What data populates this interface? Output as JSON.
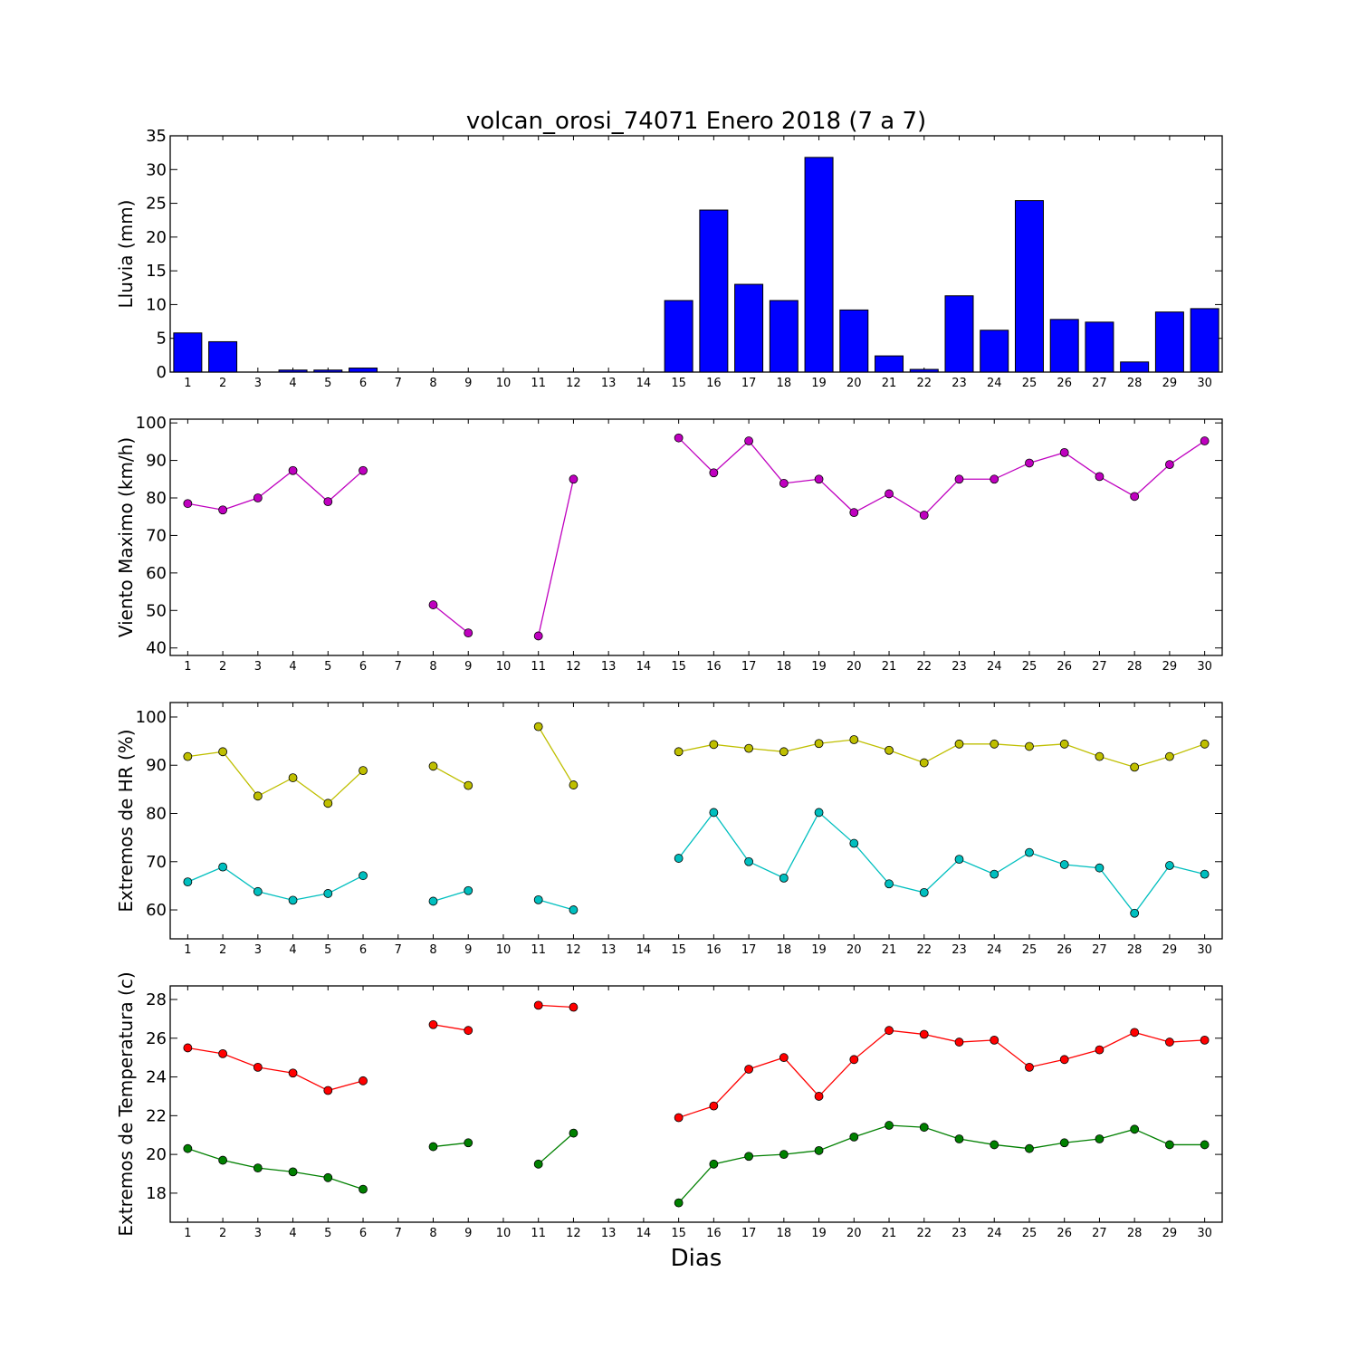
{
  "chart_data": [
    {
      "type": "bar",
      "title": "volcan_orosi_74071 Enero 2018  (7 a 7)",
      "ylabel": "Lluvia (mm)",
      "xlabel": "",
      "ylim": [
        0,
        35
      ],
      "yticks": [
        0,
        5,
        10,
        15,
        20,
        25,
        30,
        35
      ],
      "x": [
        1,
        2,
        3,
        4,
        5,
        6,
        7,
        8,
        9,
        10,
        11,
        12,
        13,
        14,
        15,
        16,
        17,
        18,
        19,
        20,
        21,
        22,
        23,
        24,
        25,
        26,
        27,
        28,
        29,
        30
      ],
      "values": [
        5.8,
        4.5,
        0,
        0.3,
        0.3,
        0.6,
        0,
        0,
        0,
        0,
        0,
        0,
        0,
        0,
        10.6,
        24,
        13,
        10.6,
        31.8,
        9.2,
        2.4,
        0.4,
        11.3,
        6.2,
        25.4,
        7.8,
        7.4,
        1.5,
        8.9,
        9.4
      ],
      "series": [
        {
          "color": "#0000ff",
          "values": [
            5.8,
            4.5,
            0,
            0.3,
            0.3,
            0.6,
            0,
            0,
            0,
            0,
            0,
            0,
            0,
            0,
            10.6,
            24,
            13,
            10.6,
            31.8,
            9.2,
            2.4,
            0.4,
            11.3,
            6.2,
            25.4,
            7.8,
            7.4,
            1.5,
            8.9,
            9.4
          ]
        }
      ]
    },
    {
      "type": "line",
      "title": "",
      "ylabel": "Viento Maximo (km/h)",
      "xlabel": "",
      "ylim": [
        38,
        101
      ],
      "yticks": [
        40,
        50,
        60,
        70,
        80,
        90,
        100
      ],
      "x": [
        1,
        2,
        3,
        4,
        5,
        6,
        7,
        8,
        9,
        10,
        11,
        12,
        13,
        14,
        15,
        16,
        17,
        18,
        19,
        20,
        21,
        22,
        23,
        24,
        25,
        26,
        27,
        28,
        29,
        30
      ],
      "series": [
        {
          "color": "#bf00bf",
          "values": [
            78.5,
            76.8,
            80,
            87.3,
            79,
            87.3,
            null,
            51.5,
            44,
            null,
            43.2,
            85,
            null,
            null,
            96,
            86.7,
            95.2,
            83.9,
            85,
            76.1,
            81.1,
            75.4,
            85,
            85,
            89.3,
            92.1,
            85.7,
            80.4,
            88.9,
            95.2
          ]
        }
      ]
    },
    {
      "type": "line",
      "title": "",
      "ylabel": "Extremos de HR (%)",
      "xlabel": "",
      "ylim": [
        54,
        103
      ],
      "yticks": [
        60,
        70,
        80,
        90,
        100
      ],
      "x": [
        1,
        2,
        3,
        4,
        5,
        6,
        7,
        8,
        9,
        10,
        11,
        12,
        13,
        14,
        15,
        16,
        17,
        18,
        19,
        20,
        21,
        22,
        23,
        24,
        25,
        26,
        27,
        28,
        29,
        30
      ],
      "series": [
        {
          "color": "#bfbf00",
          "values": [
            91.8,
            92.8,
            83.6,
            87.4,
            82.1,
            88.9,
            null,
            89.8,
            85.8,
            null,
            98,
            85.9,
            null,
            null,
            92.8,
            94.3,
            93.5,
            92.8,
            94.5,
            95.3,
            93.1,
            90.5,
            94.4,
            94.4,
            93.9,
            94.4,
            91.8,
            89.6,
            91.8,
            94.4
          ]
        },
        {
          "color": "#00bfbf",
          "values": [
            65.8,
            68.9,
            63.8,
            62,
            63.4,
            67.1,
            null,
            61.8,
            64,
            null,
            62.1,
            60,
            null,
            null,
            70.7,
            80.2,
            70,
            66.6,
            80.2,
            73.8,
            65.4,
            63.6,
            70.5,
            67.4,
            71.9,
            69.4,
            68.7,
            59.3,
            69.2,
            67.4
          ]
        }
      ]
    },
    {
      "type": "line",
      "title": "",
      "ylabel": "Extremos de Temperatura (c)",
      "xlabel": "Dias",
      "ylim": [
        16.5,
        28.7
      ],
      "yticks": [
        18,
        20,
        22,
        24,
        26,
        28
      ],
      "x": [
        1,
        2,
        3,
        4,
        5,
        6,
        7,
        8,
        9,
        10,
        11,
        12,
        13,
        14,
        15,
        16,
        17,
        18,
        19,
        20,
        21,
        22,
        23,
        24,
        25,
        26,
        27,
        28,
        29,
        30
      ],
      "series": [
        {
          "color": "#ff0000",
          "values": [
            25.5,
            25.2,
            24.5,
            24.2,
            23.3,
            23.8,
            null,
            26.7,
            26.4,
            null,
            27.7,
            27.6,
            null,
            null,
            21.9,
            22.5,
            24.4,
            25,
            23,
            24.9,
            26.4,
            26.2,
            25.8,
            25.9,
            24.5,
            24.9,
            25.4,
            26.3,
            25.8,
            25.9
          ]
        },
        {
          "color": "#008000",
          "values": [
            20.3,
            19.7,
            19.3,
            19.1,
            18.8,
            18.2,
            null,
            20.4,
            20.6,
            null,
            19.5,
            21.1,
            null,
            null,
            17.5,
            19.5,
            19.9,
            20,
            20.2,
            20.9,
            21.5,
            21.4,
            20.8,
            20.5,
            20.3,
            20.6,
            20.8,
            21.3,
            20.5,
            20.5
          ]
        }
      ]
    }
  ]
}
